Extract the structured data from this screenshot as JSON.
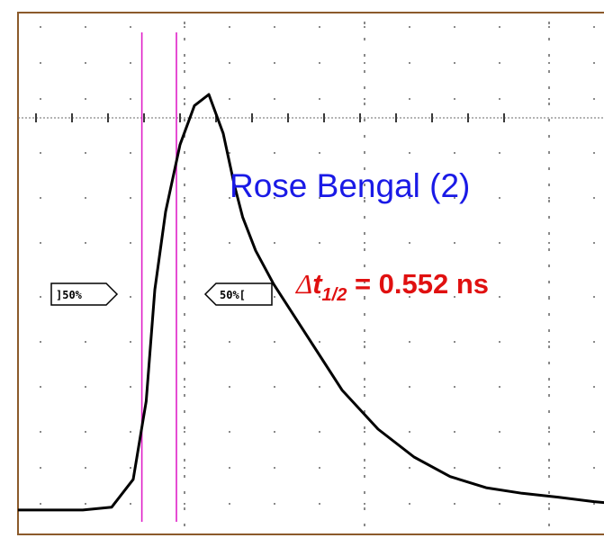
{
  "colors": {
    "frame": "#8b5a2b",
    "trace": "#000000",
    "cursor": "#e020c8",
    "title_text": "#1a1ae6",
    "result_text": "#e01010",
    "grid": "#8a8a8a"
  },
  "annotations": {
    "sample_title": "Rose Bengal (2)",
    "delta_symbol": "Δ",
    "t_letter": "t",
    "t_subscript": "1/2",
    "delta_value": "= 0.552 ns",
    "left_marker": "]50%",
    "right_marker": "50%["
  },
  "chart_data": {
    "type": "line",
    "title": "Rose Bengal (2)",
    "xlabel": "",
    "ylabel": "",
    "grid": true,
    "xlim": [
      0,
      10
    ],
    "ylim": [
      0,
      8
    ],
    "series": [
      {
        "x": [
          0.0,
          0.4,
          0.9,
          1.3,
          1.6,
          1.78,
          1.9,
          2.05,
          2.25,
          2.45,
          2.65,
          2.85,
          3.0,
          3.12,
          3.3,
          3.55,
          3.8,
          4.1,
          4.5,
          5.0,
          5.5,
          6.0,
          6.5,
          7.0,
          7.5,
          8.0,
          8.5,
          9.0,
          9.5,
          10.0
        ],
        "y": [
          0.05,
          0.05,
          0.05,
          0.1,
          0.6,
          2.0,
          4.0,
          5.4,
          6.6,
          7.3,
          7.5,
          6.8,
          5.9,
          5.3,
          4.7,
          4.1,
          3.6,
          3.0,
          2.2,
          1.5,
          1.0,
          0.65,
          0.45,
          0.35,
          0.28,
          0.2,
          0.14,
          0.1,
          0.07,
          0.05
        ]
      }
    ],
    "cursors_x": [
      1.72,
      2.2
    ],
    "half_max_level": 3.75,
    "delta_t_half": "0.552 ns"
  }
}
